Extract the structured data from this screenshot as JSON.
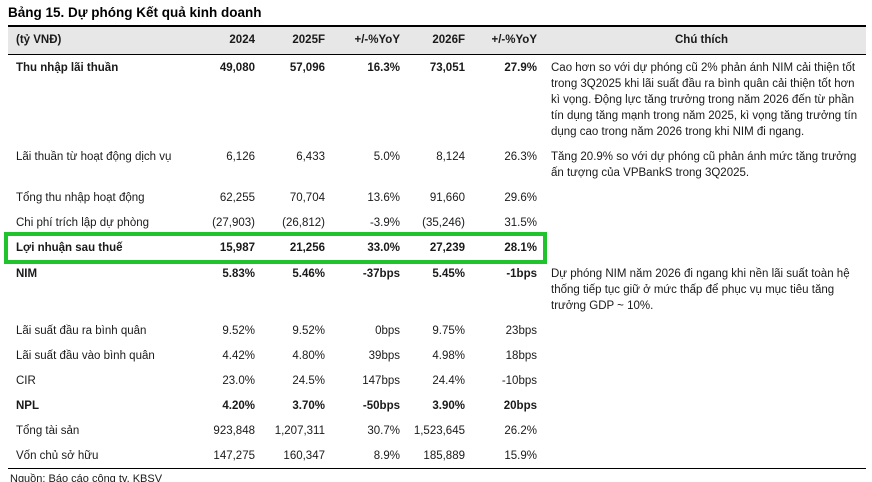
{
  "title": "Bảng 15. Dự phóng Kết quả kinh doanh",
  "table": {
    "headers": [
      "(tỷ VNĐ)",
      "2024",
      "2025F",
      "+/-%YoY",
      "2026F",
      "+/-%YoY",
      "Chú thích"
    ],
    "rows": [
      {
        "label": "Thu nhập lãi thuần",
        "bold": true,
        "highlight": false,
        "values": [
          "49,080",
          "57,096",
          "16.3%",
          "73,051",
          "27.9%"
        ],
        "note": "Cao hơn so với dự phóng cũ 2% phản ánh NIM cải thiện tốt trong 3Q2025 khi lãi suất đầu ra bình quân cải thiện tốt hơn kì vọng. Động lực tăng trưởng trong năm 2026 đến từ phần tín dụng tăng mạnh trong năm 2025, kì vọng tăng trưởng tín dụng cao trong năm 2026 trong khi NIM đi ngang."
      },
      {
        "label": "Lãi thuần từ hoạt động dịch vụ",
        "bold": false,
        "highlight": false,
        "values": [
          "6,126",
          "6,433",
          "5.0%",
          "8,124",
          "26.3%"
        ],
        "note": "Tăng 20.9% so với dự phóng cũ phản ánh mức tăng trưởng ấn tượng của VPBankS trong 3Q2025."
      },
      {
        "label": "Tổng thu nhập hoạt động",
        "bold": false,
        "highlight": false,
        "values": [
          "62,255",
          "70,704",
          "13.6%",
          "91,660",
          "29.6%"
        ],
        "note": ""
      },
      {
        "label": "Chi phí trích lập dự phòng",
        "bold": false,
        "highlight": false,
        "values": [
          "(27,903)",
          "(26,812)",
          "-3.9%",
          "(35,246)",
          "31.5%"
        ],
        "note": ""
      },
      {
        "label": "Lợi nhuận sau thuế",
        "bold": true,
        "highlight": true,
        "values": [
          "15,987",
          "21,256",
          "33.0%",
          "27,239",
          "28.1%"
        ],
        "note": ""
      },
      {
        "label": "NIM",
        "bold": true,
        "highlight": false,
        "values": [
          "5.83%",
          "5.46%",
          "-37bps",
          "5.45%",
          "-1bps"
        ],
        "note": "Dự phóng NIM năm 2026 đi ngang khi nền lãi suất toàn hệ thống tiếp tục giữ ở mức thấp để phục vụ mục tiêu tăng trưởng GDP ~ 10%."
      },
      {
        "label": "Lãi suất đầu ra bình quân",
        "bold": false,
        "highlight": false,
        "values": [
          "9.52%",
          "9.52%",
          "0bps",
          "9.75%",
          "23bps"
        ],
        "note": ""
      },
      {
        "label": "Lãi suất đầu vào bình quân",
        "bold": false,
        "highlight": false,
        "values": [
          "4.42%",
          "4.80%",
          "39bps",
          "4.98%",
          "18bps"
        ],
        "note": ""
      },
      {
        "label": "CIR",
        "bold": false,
        "highlight": false,
        "values": [
          "23.0%",
          "24.5%",
          "147bps",
          "24.4%",
          "-10bps"
        ],
        "note": ""
      },
      {
        "label": "NPL",
        "bold": true,
        "highlight": false,
        "values": [
          "4.20%",
          "3.70%",
          "-50bps",
          "3.90%",
          "20bps"
        ],
        "note": ""
      },
      {
        "label": "Tổng tài sản",
        "bold": false,
        "highlight": false,
        "values": [
          "923,848",
          "1,207,311",
          "30.7%",
          "1,523,645",
          "26.2%"
        ],
        "note": ""
      },
      {
        "label": "Vốn chủ sở hữu",
        "bold": false,
        "highlight": false,
        "values": [
          "147,275",
          "160,347",
          "8.9%",
          "185,889",
          "15.9%"
        ],
        "note": ""
      }
    ]
  },
  "highlight": {
    "color": "#1fc32b",
    "row_label": "Lợi nhuận sau thuế"
  },
  "colors": {
    "header_bg": "#e7e7e7",
    "border": "#000000",
    "text": "#1a1a1a"
  },
  "source": "Nguồn: Báo cáo công ty, KBSV"
}
